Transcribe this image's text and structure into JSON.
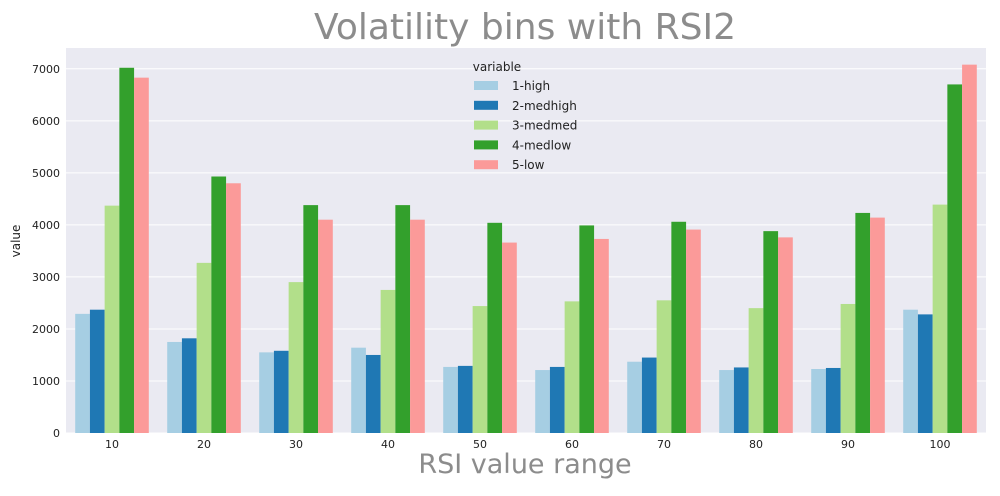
{
  "chart_data": {
    "type": "bar",
    "title": "Volatility bins with RSI2",
    "xlabel": "RSI value range",
    "ylabel": "value",
    "categories": [
      "10",
      "20",
      "30",
      "40",
      "50",
      "60",
      "70",
      "80",
      "90",
      "100"
    ],
    "ylim": [
      0,
      7400
    ],
    "yticks": [
      0,
      1000,
      2000,
      3000,
      4000,
      5000,
      6000,
      7000
    ],
    "grid": true,
    "legend": {
      "title": "variable",
      "placement": "top-center"
    },
    "series": [
      {
        "name": "1-high",
        "color": "#a6cee3",
        "values": [
          2290,
          1750,
          1550,
          1640,
          1270,
          1210,
          1370,
          1210,
          1230,
          2370
        ]
      },
      {
        "name": "2-medhigh",
        "color": "#1f78b4",
        "values": [
          2370,
          1820,
          1580,
          1500,
          1290,
          1270,
          1450,
          1260,
          1250,
          2280
        ]
      },
      {
        "name": "3-medmed",
        "color": "#b2df8a",
        "values": [
          4370,
          3270,
          2900,
          2750,
          2440,
          2530,
          2550,
          2400,
          2480,
          4390
        ]
      },
      {
        "name": "4-medlow",
        "color": "#33a02c",
        "values": [
          7020,
          4930,
          4380,
          4380,
          4040,
          3990,
          4060,
          3880,
          4230,
          6700
        ]
      },
      {
        "name": "5-low",
        "color": "#fb9a99",
        "values": [
          6830,
          4800,
          4100,
          4100,
          3660,
          3730,
          3910,
          3760,
          4140,
          7080
        ]
      }
    ]
  }
}
